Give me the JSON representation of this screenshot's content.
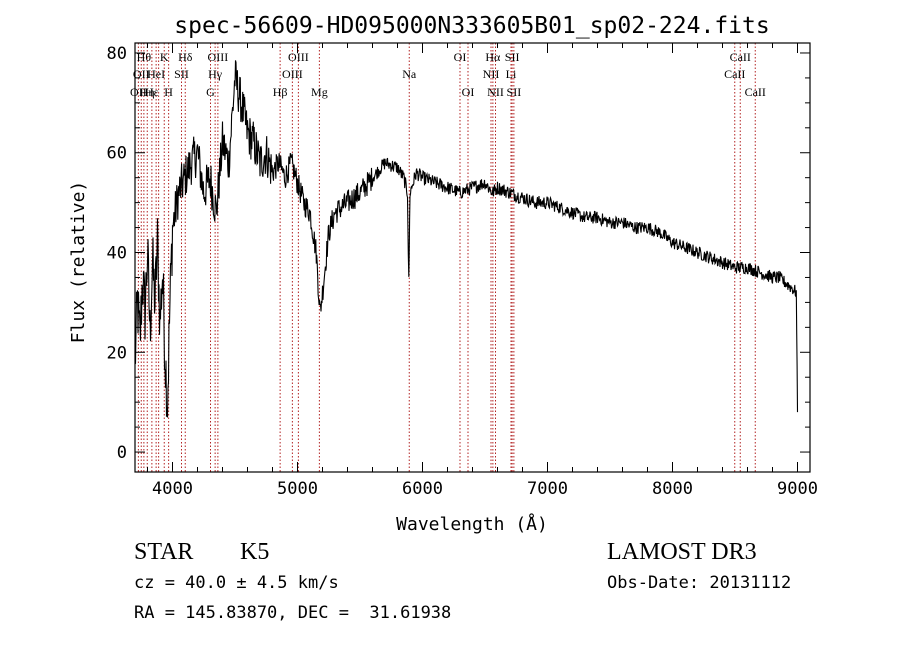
{
  "footer": {
    "object_class": "STAR",
    "subclass": "K5",
    "survey": "LAMOST DR3",
    "cz": "cz = 40.0 ± 4.5 km/s",
    "obs_date": "Obs-Date: 20131112",
    "coords": "RA = 145.83870, DEC =  31.61938"
  },
  "chart_data": {
    "type": "line",
    "title": "spec-56609-HD095000N333605B01_sp02-224.fits",
    "xlabel": "Wavelength (Å)",
    "ylabel": "Flux (relative)",
    "xlim": [
      3700,
      9100
    ],
    "ylim": [
      -4,
      82
    ],
    "xticks": [
      4000,
      5000,
      6000,
      7000,
      8000,
      9000
    ],
    "yticks": [
      0,
      20,
      40,
      60,
      80
    ],
    "xminor_step": 200,
    "yminor_step": 5,
    "grid": false,
    "line_color": "#000000",
    "marker_color": "#b22222",
    "series": [
      {
        "name": "flux",
        "x": [
          3700,
          3720,
          3740,
          3760,
          3780,
          3800,
          3820,
          3840,
          3860,
          3880,
          3900,
          3920,
          3940,
          3960,
          3980,
          4000,
          4050,
          4100,
          4150,
          4200,
          4250,
          4300,
          4350,
          4400,
          4450,
          4500,
          4550,
          4600,
          4650,
          4700,
          4750,
          4800,
          4850,
          4900,
          4950,
          5000,
          5050,
          5100,
          5150,
          5180,
          5200,
          5250,
          5300,
          5400,
          5500,
          5600,
          5700,
          5800,
          5850,
          5880,
          5890,
          5900,
          5950,
          6000,
          6100,
          6200,
          6300,
          6400,
          6500,
          6560,
          6600,
          6700,
          6800,
          6900,
          7000,
          7100,
          7200,
          7300,
          7400,
          7500,
          7600,
          7700,
          7800,
          7900,
          8000,
          8100,
          8200,
          8300,
          8400,
          8500,
          8600,
          8700,
          8800,
          8850,
          8900,
          8950,
          8990,
          9000
        ],
        "y": [
          18,
          30,
          22,
          35,
          28,
          40,
          24,
          38,
          30,
          42,
          26,
          36,
          20,
          10,
          30,
          45,
          52,
          55,
          58,
          60,
          52,
          55,
          48,
          62,
          58,
          75,
          70,
          64,
          62,
          58,
          60,
          56,
          58,
          55,
          58,
          54,
          50,
          48,
          40,
          28,
          32,
          44,
          48,
          50,
          52,
          55,
          58,
          57,
          55,
          52,
          34,
          52,
          56,
          55,
          54,
          53,
          52,
          53,
          54,
          52,
          53,
          52,
          51,
          50,
          50,
          49,
          48,
          47,
          47,
          46,
          46,
          45,
          45,
          44,
          42,
          41,
          40,
          39,
          38,
          37,
          37,
          36,
          35,
          35,
          34,
          33,
          32,
          8
        ]
      }
    ],
    "lines": [
      {
        "wl": 3727,
        "labels": [
          {
            "text": "OII",
            "row": 2
          }
        ]
      },
      {
        "wl": 3750,
        "labels": [
          {
            "text": "OII",
            "row": 1
          }
        ]
      },
      {
        "wl": 3771,
        "labels": [
          {
            "text": "Hθ",
            "row": 0
          }
        ]
      },
      {
        "wl": 3798,
        "labels": [
          {
            "text": "Hη",
            "row": 2
          }
        ]
      },
      {
        "wl": 3835,
        "labels": [
          {
            "text": "Hε",
            "row": 2
          }
        ]
      },
      {
        "wl": 3869,
        "labels": [
          {
            "text": "HeI",
            "row": 1
          }
        ]
      },
      {
        "wl": 3889,
        "labels": [
          {
            "text": "",
            "row": 0
          }
        ]
      },
      {
        "wl": 3934,
        "labels": [
          {
            "text": "K",
            "row": 0
          }
        ]
      },
      {
        "wl": 3969,
        "labels": [
          {
            "text": "H",
            "row": 2
          }
        ]
      },
      {
        "wl": 4072,
        "labels": [
          {
            "text": "SII",
            "row": 1
          }
        ]
      },
      {
        "wl": 4102,
        "labels": [
          {
            "text": "Hδ",
            "row": 0
          }
        ]
      },
      {
        "wl": 4304,
        "labels": [
          {
            "text": "G",
            "row": 2
          }
        ]
      },
      {
        "wl": 4341,
        "labels": [
          {
            "text": "Hγ",
            "row": 1
          }
        ]
      },
      {
        "wl": 4363,
        "labels": [
          {
            "text": "OIII",
            "row": 0
          }
        ]
      },
      {
        "wl": 4861,
        "labels": [
          {
            "text": "Hβ",
            "row": 2
          }
        ]
      },
      {
        "wl": 4959,
        "labels": [
          {
            "text": "OIII",
            "row": 1
          }
        ]
      },
      {
        "wl": 5007,
        "labels": [
          {
            "text": "OIII",
            "row": 0
          }
        ]
      },
      {
        "wl": 5175,
        "labels": [
          {
            "text": "Mg",
            "row": 2
          }
        ]
      },
      {
        "wl": 5894,
        "labels": [
          {
            "text": "Na",
            "row": 1
          }
        ]
      },
      {
        "wl": 6300,
        "labels": [
          {
            "text": "OI",
            "row": 0
          }
        ]
      },
      {
        "wl": 6364,
        "labels": [
          {
            "text": "OI",
            "row": 2
          }
        ]
      },
      {
        "wl": 6548,
        "labels": [
          {
            "text": "NII",
            "row": 1
          }
        ]
      },
      {
        "wl": 6563,
        "labels": [
          {
            "text": "Hα",
            "row": 0
          }
        ]
      },
      {
        "wl": 6584,
        "labels": [
          {
            "text": "NII",
            "row": 2
          }
        ]
      },
      {
        "wl": 6708,
        "labels": [
          {
            "text": "Li",
            "row": 1
          }
        ]
      },
      {
        "wl": 6717,
        "labels": [
          {
            "text": "SII",
            "row": 0
          }
        ]
      },
      {
        "wl": 6731,
        "labels": [
          {
            "text": "SII",
            "row": 2
          }
        ]
      },
      {
        "wl": 8498,
        "labels": [
          {
            "text": "CaII",
            "row": 1
          }
        ]
      },
      {
        "wl": 8542,
        "labels": [
          {
            "text": "CaII",
            "row": 0
          }
        ]
      },
      {
        "wl": 8662,
        "labels": [
          {
            "text": "CaII",
            "row": 2
          }
        ]
      }
    ]
  }
}
